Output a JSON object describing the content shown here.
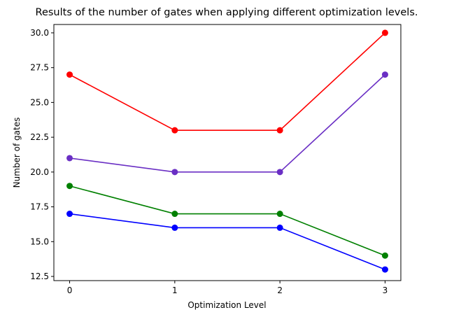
{
  "chart_data": {
    "type": "line",
    "title": "Results of the number of gates when applying different optimization levels.",
    "xlabel": "Optimization Level",
    "ylabel": "Number of gates",
    "x": [
      0,
      1,
      2,
      3
    ],
    "x_tick_labels": [
      "0",
      "1",
      "2",
      "3"
    ],
    "xlim": [
      -0.15,
      3.15
    ],
    "ylim": [
      12.2,
      30.6
    ],
    "y_ticks": [
      12.5,
      15.0,
      17.5,
      20.0,
      22.5,
      25.0,
      27.5,
      30.0
    ],
    "y_tick_labels": [
      "12.5",
      "15.0",
      "17.5",
      "20.0",
      "22.5",
      "25.0",
      "27.5",
      "30.0"
    ],
    "grid": false,
    "legend": "none",
    "series": [
      {
        "color": "#ff0000",
        "values": [
          27,
          23,
          23,
          30
        ]
      },
      {
        "color": "#6a2fc4",
        "values": [
          21,
          20,
          20,
          27
        ]
      },
      {
        "color": "#008000",
        "values": [
          19,
          17,
          17,
          14
        ]
      },
      {
        "color": "#0000ff",
        "values": [
          17,
          16,
          16,
          13
        ]
      }
    ]
  }
}
